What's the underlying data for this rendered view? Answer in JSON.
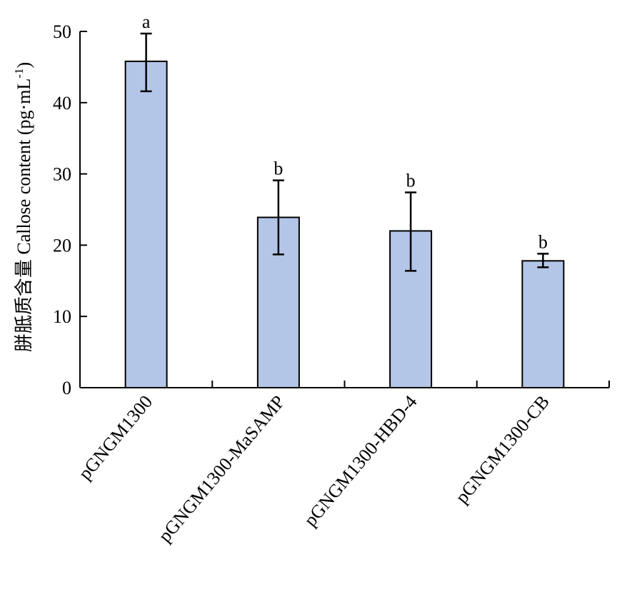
{
  "chart_data": {
    "type": "bar",
    "title": "",
    "xlabel": "",
    "ylabel": "胼胝质含量 Callose content (pg·mL",
    "ylabel_superscript": "-1",
    "ylabel_suffix": ")",
    "ylim": [
      0,
      50
    ],
    "yticks": [
      0,
      10,
      20,
      30,
      40,
      50
    ],
    "grid": false,
    "legend": "none",
    "categories": [
      "pGNGM1300",
      "pGNGM1300-MaSAMP",
      "pGNGM1300-HBD-4",
      "pGNGM1300-CB"
    ],
    "values": [
      45.8,
      23.9,
      22.0,
      17.8
    ],
    "error_upper": [
      49.7,
      29.1,
      27.4,
      18.8
    ],
    "error_lower": [
      41.6,
      18.7,
      16.4,
      16.9
    ],
    "significance": [
      "a",
      "b",
      "b",
      "b"
    ],
    "bar_color": "#b4c6e7",
    "edge_color": "#000000"
  }
}
